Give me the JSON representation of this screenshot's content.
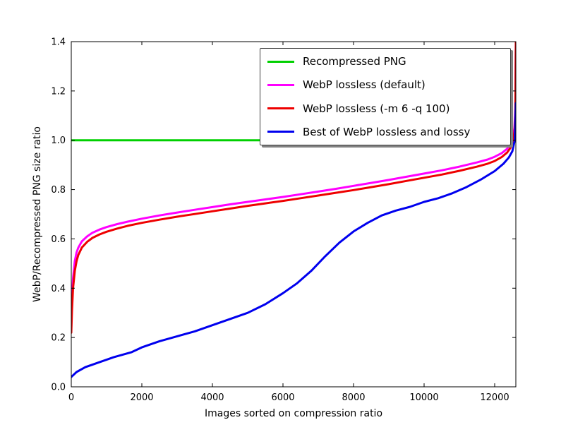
{
  "chart_data": {
    "type": "line",
    "title": "",
    "xlabel": "Images sorted on compression ratio",
    "ylabel": "WebP/Recompressed PNG size ratio",
    "xlim": [
      0,
      12600
    ],
    "ylim": [
      0.0,
      1.4
    ],
    "xticks": [
      0,
      2000,
      4000,
      6000,
      8000,
      10000,
      12000
    ],
    "yticks": [
      0.0,
      0.2,
      0.4,
      0.6,
      0.8,
      1.0,
      1.2,
      1.4
    ],
    "grid": false,
    "legend_position": "upper right",
    "legend_shadow": true,
    "frame_color": "#000000",
    "background_color": "#ffffff",
    "series": [
      {
        "name": "Recompressed PNG",
        "color": "#00d000",
        "points": [
          [
            0,
            1.0
          ],
          [
            12600,
            1.0
          ]
        ]
      },
      {
        "name": "WebP lossless (default)",
        "color": "#ff00ff",
        "points": [
          [
            0,
            0.26
          ],
          [
            20,
            0.35
          ],
          [
            50,
            0.44
          ],
          [
            100,
            0.51
          ],
          [
            150,
            0.545
          ],
          [
            200,
            0.565
          ],
          [
            300,
            0.59
          ],
          [
            450,
            0.61
          ],
          [
            600,
            0.625
          ],
          [
            800,
            0.638
          ],
          [
            1000,
            0.648
          ],
          [
            1300,
            0.66
          ],
          [
            1600,
            0.67
          ],
          [
            2000,
            0.682
          ],
          [
            2500,
            0.695
          ],
          [
            3000,
            0.707
          ],
          [
            3500,
            0.718
          ],
          [
            4000,
            0.729
          ],
          [
            4500,
            0.74
          ],
          [
            5000,
            0.75
          ],
          [
            5500,
            0.76
          ],
          [
            6000,
            0.77
          ],
          [
            6500,
            0.781
          ],
          [
            7000,
            0.792
          ],
          [
            7500,
            0.803
          ],
          [
            8000,
            0.815
          ],
          [
            8500,
            0.827
          ],
          [
            9000,
            0.839
          ],
          [
            9500,
            0.852
          ],
          [
            10000,
            0.865
          ],
          [
            10500,
            0.878
          ],
          [
            11000,
            0.893
          ],
          [
            11500,
            0.91
          ],
          [
            11800,
            0.922
          ],
          [
            12000,
            0.933
          ],
          [
            12200,
            0.948
          ],
          [
            12350,
            0.965
          ],
          [
            12450,
            0.985
          ],
          [
            12520,
            1.01
          ],
          [
            12560,
            1.05
          ],
          [
            12585,
            1.13
          ],
          [
            12600,
            1.4
          ]
        ]
      },
      {
        "name": "WebP lossless (-m 6 -q 100)",
        "color": "#ee0000",
        "points": [
          [
            0,
            0.22
          ],
          [
            20,
            0.31
          ],
          [
            50,
            0.4
          ],
          [
            100,
            0.47
          ],
          [
            150,
            0.51
          ],
          [
            200,
            0.535
          ],
          [
            300,
            0.565
          ],
          [
            450,
            0.588
          ],
          [
            600,
            0.604
          ],
          [
            800,
            0.618
          ],
          [
            1000,
            0.629
          ],
          [
            1300,
            0.642
          ],
          [
            1600,
            0.653
          ],
          [
            2000,
            0.665
          ],
          [
            2500,
            0.678
          ],
          [
            3000,
            0.69
          ],
          [
            3500,
            0.701
          ],
          [
            4000,
            0.712
          ],
          [
            4500,
            0.723
          ],
          [
            5000,
            0.734
          ],
          [
            5500,
            0.744
          ],
          [
            6000,
            0.754
          ],
          [
            6500,
            0.765
          ],
          [
            7000,
            0.776
          ],
          [
            7500,
            0.787
          ],
          [
            8000,
            0.798
          ],
          [
            8500,
            0.81
          ],
          [
            9000,
            0.822
          ],
          [
            9500,
            0.835
          ],
          [
            10000,
            0.848
          ],
          [
            10500,
            0.861
          ],
          [
            11000,
            0.876
          ],
          [
            11500,
            0.893
          ],
          [
            11800,
            0.905
          ],
          [
            12000,
            0.916
          ],
          [
            12200,
            0.932
          ],
          [
            12350,
            0.95
          ],
          [
            12450,
            0.97
          ],
          [
            12520,
            0.995
          ],
          [
            12560,
            1.035
          ],
          [
            12585,
            1.1
          ],
          [
            12600,
            1.4
          ]
        ]
      },
      {
        "name": "Best of WebP lossless and lossy",
        "color": "#0000ee",
        "points": [
          [
            0,
            0.04
          ],
          [
            150,
            0.06
          ],
          [
            400,
            0.08
          ],
          [
            800,
            0.1
          ],
          [
            1200,
            0.12
          ],
          [
            1700,
            0.14
          ],
          [
            2000,
            0.16
          ],
          [
            2500,
            0.185
          ],
          [
            3000,
            0.205
          ],
          [
            3500,
            0.225
          ],
          [
            4000,
            0.25
          ],
          [
            4500,
            0.275
          ],
          [
            5000,
            0.3
          ],
          [
            5500,
            0.335
          ],
          [
            6000,
            0.38
          ],
          [
            6400,
            0.42
          ],
          [
            6800,
            0.47
          ],
          [
            7200,
            0.53
          ],
          [
            7600,
            0.585
          ],
          [
            8000,
            0.63
          ],
          [
            8400,
            0.665
          ],
          [
            8800,
            0.695
          ],
          [
            9200,
            0.715
          ],
          [
            9600,
            0.73
          ],
          [
            10000,
            0.75
          ],
          [
            10400,
            0.765
          ],
          [
            10800,
            0.785
          ],
          [
            11200,
            0.81
          ],
          [
            11600,
            0.84
          ],
          [
            12000,
            0.875
          ],
          [
            12250,
            0.905
          ],
          [
            12400,
            0.93
          ],
          [
            12500,
            0.955
          ],
          [
            12570,
            1.0
          ],
          [
            12600,
            1.15
          ]
        ]
      }
    ]
  }
}
